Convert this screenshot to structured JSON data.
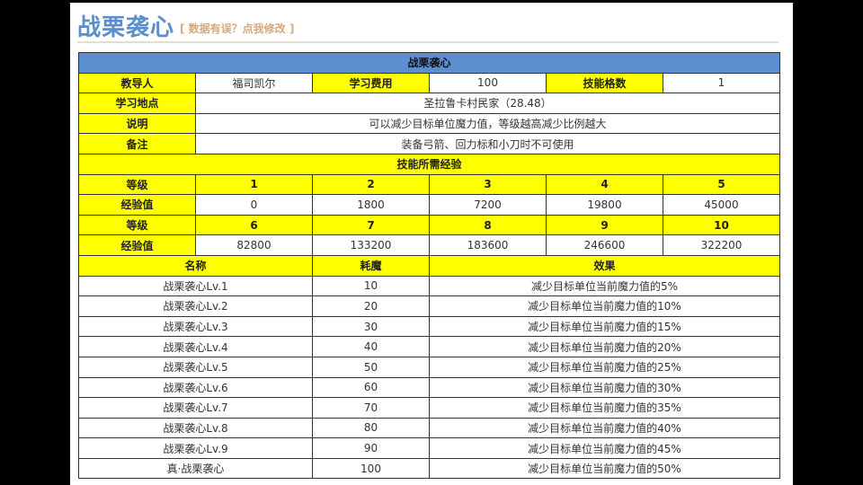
{
  "title": "战栗袭心",
  "edit_link": "[ 数据有误？点我修改 ]",
  "table_title": "战栗袭心",
  "info": {
    "teacher_label": "教导人",
    "teacher": "福司凯尔",
    "cost_label": "学习费用",
    "cost": "100",
    "slots_label": "技能格数",
    "slots": "1",
    "location_label": "学习地点",
    "location": "圣拉鲁卡村民家（28.48）",
    "desc_label": "说明",
    "desc": "可以减少目标单位魔力值，等级越高减少比例越大",
    "note_label": "备注",
    "note": "装备弓箭、回力标和小刀时不可使用"
  },
  "exp": {
    "header": "技能所需经验",
    "level_label": "等级",
    "exp_label": "经验值",
    "rows": [
      {
        "levels": [
          "1",
          "2",
          "3",
          "4",
          "5"
        ],
        "values": [
          "0",
          "1800",
          "7200",
          "19800",
          "45000"
        ]
      },
      {
        "levels": [
          "6",
          "7",
          "8",
          "9",
          "10"
        ],
        "values": [
          "82800",
          "133200",
          "183600",
          "246600",
          "322200"
        ]
      }
    ]
  },
  "effects": {
    "headers": [
      "名称",
      "耗魔",
      "效果"
    ],
    "rows": [
      [
        "战栗袭心Lv.1",
        "10",
        "减少目标单位当前魔力值的5%"
      ],
      [
        "战栗袭心Lv.2",
        "20",
        "减少目标单位当前魔力值的10%"
      ],
      [
        "战栗袭心Lv.3",
        "30",
        "减少目标单位当前魔力值的15%"
      ],
      [
        "战栗袭心Lv.4",
        "40",
        "减少目标单位当前魔力值的20%"
      ],
      [
        "战栗袭心Lv.5",
        "50",
        "减少目标单位当前魔力值的25%"
      ],
      [
        "战栗袭心Lv.6",
        "60",
        "减少目标单位当前魔力值的30%"
      ],
      [
        "战栗袭心Lv.7",
        "70",
        "减少目标单位当前魔力值的35%"
      ],
      [
        "战栗袭心Lv.8",
        "80",
        "减少目标单位当前魔力值的40%"
      ],
      [
        "战栗袭心Lv.9",
        "90",
        "减少目标单位当前魔力值的45%"
      ],
      [
        "真·战栗袭心",
        "100",
        "减少目标单位当前魔力值的50%"
      ]
    ]
  }
}
